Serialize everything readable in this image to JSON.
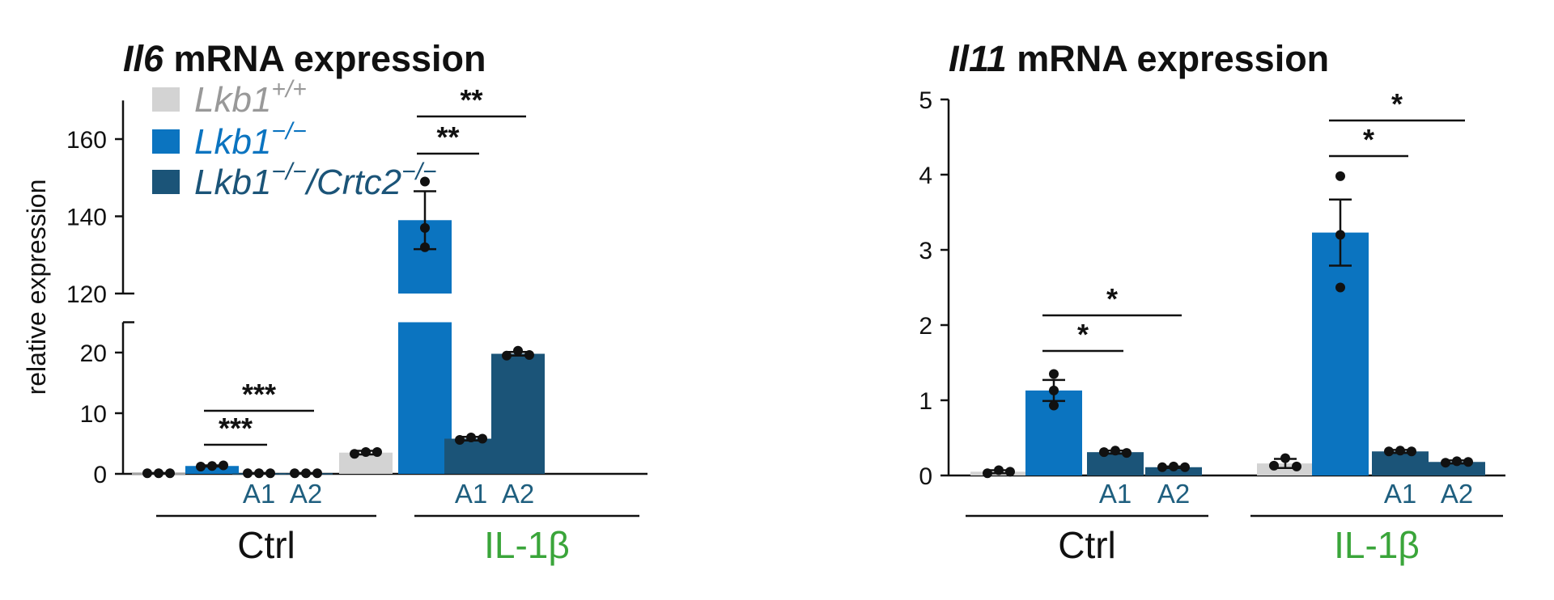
{
  "chart_data": [
    {
      "type": "bar",
      "title_gene": "Il6",
      "title_rest": " mRNA expression",
      "ylabel": "relative expression",
      "axis_break": {
        "lower": [
          0,
          25
        ],
        "upper": [
          120,
          170
        ]
      },
      "yticks_lower": [
        0,
        10,
        20
      ],
      "yticks_upper": [
        120,
        140,
        160
      ],
      "groups": [
        {
          "name": "Ctrl",
          "color": "#111111"
        },
        {
          "name": "IL-1β",
          "color": "#3aa53a"
        }
      ],
      "series": [
        {
          "name": "Lkb1+/+",
          "color": "#d3d3d3"
        },
        {
          "name": "Lkb1−/−",
          "color": "#0b74c0"
        },
        {
          "name": "Lkb1−/−/Crtc2−/−",
          "color": "#1b5478"
        },
        {
          "name": "Lkb1−/−/Crtc2−/−",
          "color": "#1b5478"
        }
      ],
      "sublabels": [
        "",
        "",
        "A1",
        "A2"
      ],
      "values": [
        [
          0.1,
          1.3,
          0.1,
          0.1
        ],
        [
          3.5,
          139,
          5.8,
          19.8
        ]
      ],
      "errors": [
        [
          0.05,
          0.1,
          0.05,
          0.05
        ],
        [
          0.3,
          7.5,
          0.3,
          0.3
        ]
      ],
      "points": [
        [
          [
            0.1,
            0.1,
            0.1
          ],
          [
            1.2,
            1.3,
            1.4
          ],
          [
            0.1,
            0.1,
            0.1
          ],
          [
            0.1,
            0.1,
            0.1
          ]
        ],
        [
          [
            3.3,
            3.6,
            3.6
          ],
          [
            132,
            137,
            149
          ],
          [
            5.6,
            6.0,
            5.8
          ],
          [
            19.5,
            20.3,
            19.6
          ]
        ]
      ],
      "significance": [
        {
          "group": 0,
          "from": 1,
          "to": 2,
          "label": "***"
        },
        {
          "group": 0,
          "from": 1,
          "to": 3,
          "label": "***"
        },
        {
          "group": 1,
          "from": 1,
          "to": 2,
          "label": "**"
        },
        {
          "group": 1,
          "from": 1,
          "to": 3,
          "label": "**"
        }
      ],
      "legend": [
        {
          "name": "Lkb1",
          "sup": "+/+",
          "color": "#d3d3d3",
          "text_color": "#999999"
        },
        {
          "name": "Lkb1",
          "sup": "−/−",
          "color": "#0b74c0",
          "text_color": "#0b74c0"
        },
        {
          "name": "Lkb1",
          "sup": "−/−",
          "suffix": "/Crtc2",
          "sup2": "−/−",
          "color": "#1b5478",
          "text_color": "#1b5478"
        }
      ]
    },
    {
      "type": "bar",
      "title_gene": "Il11",
      "title_rest": " mRNA expression",
      "ylabel": "",
      "ylim": [
        0,
        5
      ],
      "yticks": [
        0,
        1,
        2,
        3,
        4,
        5
      ],
      "groups": [
        {
          "name": "Ctrl",
          "color": "#111111"
        },
        {
          "name": "IL-1β",
          "color": "#3aa53a"
        }
      ],
      "series": [
        {
          "name": "Lkb1+/+",
          "color": "#d3d3d3"
        },
        {
          "name": "Lkb1−/−",
          "color": "#0b74c0"
        },
        {
          "name": "Lkb1−/−/Crtc2−/−",
          "color": "#1b5478"
        },
        {
          "name": "Lkb1−/−/Crtc2−/−",
          "color": "#1b5478"
        }
      ],
      "sublabels": [
        "",
        "",
        "A1",
        "A2"
      ],
      "values": [
        [
          0.05,
          1.13,
          0.31,
          0.11
        ],
        [
          0.16,
          3.23,
          0.32,
          0.18
        ]
      ],
      "errors": [
        [
          0.02,
          0.14,
          0.02,
          0.01
        ],
        [
          0.06,
          0.44,
          0.02,
          0.02
        ]
      ],
      "points": [
        [
          [
            0.03,
            0.07,
            0.05
          ],
          [
            0.93,
            1.13,
            1.35
          ],
          [
            0.31,
            0.33,
            0.3
          ],
          [
            0.11,
            0.12,
            0.11
          ]
        ],
        [
          [
            0.13,
            0.23,
            0.12
          ],
          [
            2.5,
            3.2,
            3.98
          ],
          [
            0.32,
            0.33,
            0.32
          ],
          [
            0.17,
            0.19,
            0.18
          ]
        ]
      ],
      "significance": [
        {
          "group": 0,
          "from": 1,
          "to": 2,
          "label": "*"
        },
        {
          "group": 0,
          "from": 1,
          "to": 3,
          "label": "*"
        },
        {
          "group": 1,
          "from": 1,
          "to": 2,
          "label": "*"
        },
        {
          "group": 1,
          "from": 1,
          "to": 3,
          "label": "*"
        }
      ]
    }
  ]
}
